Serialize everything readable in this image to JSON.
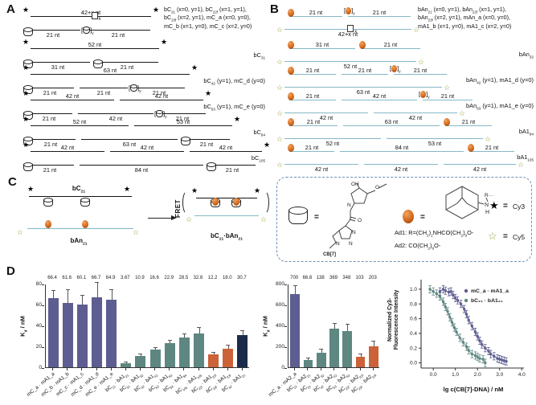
{
  "colors": {
    "purple": "#5d5d91",
    "teal": "#5e8781",
    "orange": "#cc6237",
    "navy": "#1c2b4a",
    "strand_black": "#1a1a1a",
    "strand_blue": "#85b8c6",
    "ball_orange": "#d2691e",
    "cy5_olive": "#9aa23c",
    "legend_border": "#7191b5",
    "axis": "#333333",
    "error": "#555555"
  },
  "icons": {
    "cy3_star": "★",
    "cy5_star": "☆"
  },
  "misc": {
    "sub_x": "x",
    "sub_y": "y",
    "lbracket": "[",
    "rbracket": "]"
  },
  "panel_a": {
    "letter": "A",
    "rows": [
      {
        "h": 42,
        "top": {
          "x": 12,
          "y": 14,
          "segs": [
            {
              "t": "42+x nt",
              "w": 150
            }
          ],
          "ls": 1,
          "rs": 1,
          "box": {
            "frac": 0.53,
            "sub": "x"
          }
        },
        "bot": {
          "x": 6,
          "y": 31,
          "segs": [
            {
              "t": "21 nt",
              "w": 68,
              "icon": "cb7"
            },
            {
              "t": "21 nt",
              "w": 80,
              "icon": "cb7y"
            }
          ]
        },
        "label_lines": [
          "bC_{21} (x=0, y=1), bC_{22f} (x=1, y=1),",
          "bC_{23f} (x=2, y=1), mC_a (x=0, y=0),",
          "mC_b (x=1, y=0), mC_c (x=2, y=0)"
        ],
        "label_left": 178
      },
      {
        "h": 32,
        "top": {
          "x": 12,
          "y": 12,
          "segs": [
            {
              "t": "52 nt",
              "w": 160
            }
          ],
          "ls": 1,
          "rs": 1
        },
        "bot": {
          "x": 6,
          "y": 29,
          "segs": [
            {
              "t": "31 nt",
              "w": 80,
              "icon": "cb7"
            },
            {
              "t": "21 nt",
              "w": 78,
              "icon": "cb7"
            }
          ]
        },
        "label": "bC_{31}"
      },
      {
        "h": 32,
        "top": {
          "x": 12,
          "y": 12,
          "segs": [
            {
              "t": "63 nt",
              "w": 198
            }
          ],
          "ls": 1,
          "rs": 1
        },
        "bot": {
          "x": 6,
          "y": 29,
          "segs": [
            {
              "t": "21 nt",
              "w": 60,
              "icon": "cb7"
            },
            {
              "t": "21 nt",
              "w": 60
            },
            {
              "t": "21 nt",
              "w": 64,
              "icon": "cb7y"
            }
          ]
        },
        "label": "bC_{42} (y=1), mC_d (y=0)"
      },
      {
        "h": 32,
        "top": {
          "x": 12,
          "y": 12,
          "segs": [
            {
              "t": "42 nt",
              "w": 104
            },
            {
              "t": "42 nt",
              "w": 104
            }
          ],
          "ls": 1,
          "rs": 1
        },
        "bot": {
          "x": 6,
          "y": 29,
          "segs": [
            {
              "t": "21 nt",
              "w": 58,
              "icon": "cb7"
            },
            {
              "t": "42 nt",
              "w": 94
            },
            {
              "t": "21 nt",
              "w": 58,
              "icon": "cb7y"
            }
          ]
        },
        "label": "bC_{63} (y=1), mC_e (y=0)"
      },
      {
        "h": 32,
        "top": {
          "x": 12,
          "y": 12,
          "segs": [
            {
              "t": "52 nt",
              "w": 122
            },
            {
              "t": "53 nt",
              "w": 122
            }
          ],
          "ls": 1,
          "rs": 1
        },
        "bot": {
          "x": 6,
          "y": 29,
          "segs": [
            {
              "t": "21 nt",
              "w": 62,
              "icon": "cb7"
            },
            {
              "t": "63 nt",
              "w": 120
            },
            {
              "t": "21 nt",
              "w": 58,
              "icon": "cb7"
            }
          ]
        },
        "label": "bC_{84}"
      },
      {
        "h": 32,
        "top": {
          "x": 12,
          "y": 12,
          "segs": [
            {
              "t": "42 nt",
              "w": 92
            },
            {
              "t": "42 nt",
              "w": 92
            },
            {
              "t": "42 nt",
              "w": 90
            }
          ],
          "ls": 1,
          "rs": 1
        },
        "bot": {
          "x": 6,
          "y": 29,
          "segs": [
            {
              "t": "21 nt",
              "w": 60,
              "icon": "cb7"
            },
            {
              "t": "84 nt",
              "w": 154
            },
            {
              "t": "21 nt",
              "w": 58,
              "icon": "cb7"
            }
          ]
        },
        "label": "bC_{105}"
      }
    ]
  },
  "panel_b": {
    "letter": "B",
    "rows": [
      {
        "h": 42,
        "top": {
          "x": 10,
          "y": 14,
          "segs": [
            {
              "t": "21 nt",
              "w": 66,
              "icon": "ball"
            },
            {
              "t": "21 nt",
              "w": 78,
              "icon": "bally"
            }
          ]
        },
        "bot": {
          "x": 4,
          "y": 30,
          "segs": [
            {
              "t": "42+x nt",
              "w": 158
            }
          ],
          "ls": 1,
          "rs": 1,
          "box": {
            "frac": 0.52,
            "sub": "x"
          }
        },
        "label_lines": [
          "bAn_{21} (x=0, y=1), bAn_{22f} (x=1, y=1),",
          "bAn_{23f} (x=2, y=1), mAn_a (x=0, y=0),",
          "mA1_b (x=1, y=0), mA1_c (x=2, y=0)"
        ],
        "label_left": 170
      },
      {
        "h": 32,
        "top": {
          "x": 10,
          "y": 12,
          "segs": [
            {
              "t": "31 nt",
              "w": 82,
              "icon": "ball"
            },
            {
              "t": "21 nt",
              "w": 74,
              "icon": "ball"
            }
          ]
        },
        "bot": {
          "x": 4,
          "y": 28,
          "segs": [
            {
              "t": "52 nt",
              "w": 164
            }
          ],
          "ls": 1,
          "rs": 1
        },
        "label": "bAn_{32}"
      },
      {
        "h": 32,
        "top": {
          "x": 10,
          "y": 12,
          "segs": [
            {
              "t": "21 nt",
              "w": 58,
              "icon": "ball"
            },
            {
              "t": "21 nt",
              "w": 58
            },
            {
              "t": "21 nt",
              "w": 66,
              "icon": "bally"
            }
          ]
        },
        "bot": {
          "x": 4,
          "y": 28,
          "segs": [
            {
              "t": "63 nt",
              "w": 196
            }
          ],
          "ls": 1,
          "rs": 1
        },
        "label": "bAn_{42} (y=1), mA1_d (y=0)"
      },
      {
        "h": 32,
        "top": {
          "x": 10,
          "y": 12,
          "segs": [
            {
              "t": "21 nt",
              "w": 58,
              "icon": "ball"
            },
            {
              "t": "42 nt",
              "w": 94
            },
            {
              "t": "21 nt",
              "w": 62,
              "icon": "bally"
            }
          ]
        },
        "bot": {
          "x": 4,
          "y": 28,
          "segs": [
            {
              "t": "42 nt",
              "w": 104
            },
            {
              "t": "42 nt",
              "w": 104
            }
          ],
          "ls": 1,
          "rs": 1
        },
        "label": "bAn_{63} (y=1), mA1_e (y=0)"
      },
      {
        "h": 32,
        "top": {
          "x": 10,
          "y": 12,
          "segs": [
            {
              "t": "21 nt",
              "w": 60,
              "icon": "ball"
            },
            {
              "t": "63 nt",
              "w": 120
            },
            {
              "t": "21 nt",
              "w": 58,
              "icon": "ball"
            }
          ]
        },
        "bot": {
          "x": 4,
          "y": 28,
          "segs": [
            {
              "t": "52 nt",
              "w": 120
            },
            {
              "t": "53 nt",
              "w": 120
            }
          ],
          "ls": 1,
          "rs": 1
        },
        "label": "bA1_{84}"
      },
      {
        "h": 32,
        "top": {
          "x": 10,
          "y": 12,
          "segs": [
            {
              "t": "21 nt",
              "w": 56,
              "icon": "ball"
            },
            {
              "t": "84 nt",
              "w": 154
            },
            {
              "t": "21 nt",
              "w": 56,
              "icon": "ball"
            }
          ]
        },
        "bot": {
          "x": 4,
          "y": 28,
          "segs": [
            {
              "t": "42 nt",
              "w": 92
            },
            {
              "t": "42 nt",
              "w": 92
            },
            {
              "t": "42 nt",
              "w": 90
            }
          ],
          "ls": 1,
          "rs": 1
        },
        "label": "bA1_{105}"
      }
    ]
  },
  "panel_c": {
    "letter": "C",
    "duplex_top": "bC_{21}",
    "duplex_bottom": "bAn_{21}",
    "fret": "FRET",
    "product": "bC_{21}·bAn_{21}"
  },
  "legend": {
    "eq": "=",
    "cy3": "Cy3",
    "cy5": "Cy5",
    "cb7": "CB[7]",
    "ad1": "Ad1: R=(CH_{2})_{2}NHCO(CH_{2})_{9}O-",
    "ad2": "Ad2: CO(CH_{2})_{9}O-",
    "struct": {
      "oh": "OH",
      "o_methoxy": "O",
      "n_ring": "N",
      "o_carbonyl": "O",
      "n1": "N",
      "n2": "N",
      "n3": "N"
    },
    "adam": {
      "n": "N",
      "h": "H",
      "r": "R···"
    }
  },
  "panel_d_letter": "D",
  "chart_data": [
    {
      "type": "bar",
      "title": "",
      "xlabel": "",
      "ylabel": "K_{d} / nM",
      "ylim": [
        0,
        80
      ],
      "yticks": [
        0,
        20,
        40,
        60,
        80
      ],
      "categories": [
        "mC_a · mA1_a",
        "mC_b · mA1_b",
        "mC_c · mA1_c",
        "mC_d · mA1_d",
        "mC_e · mA1_e",
        "bC_{21} · bA1_{21}",
        "bC_{31} · bA1_{32}",
        "bC_{42} · bA1_{42}",
        "bC_{63} · bA1_{63}",
        "bC_{84} · bA1_{84}",
        "bC_{105} · bA1_{105}",
        "bC_{22f} · bA1_{22f}",
        "bC_{23f} · bA1_{23f}",
        "bC_{42} · bA1_{21}"
      ],
      "values": [
        66.4,
        61.6,
        60.1,
        66.7,
        64.9,
        3.67,
        10.9,
        16.6,
        22.9,
        28.5,
        32.6,
        12.2,
        18.0,
        30.7
      ],
      "value_labels": [
        "66.4",
        "61.6",
        "60.1",
        "66.7",
        "64.9",
        "3.67",
        "10.9",
        "16.6",
        "22.9",
        "28.5",
        "32.6",
        "12.2",
        "18.0",
        "30.7"
      ],
      "errors": [
        7,
        12,
        8,
        14,
        9,
        1,
        1.5,
        2,
        2.5,
        3,
        5,
        2,
        3,
        4
      ],
      "bar_colors": [
        "purple",
        "purple",
        "purple",
        "purple",
        "purple",
        "teal",
        "teal",
        "teal",
        "teal",
        "teal",
        "teal",
        "orange",
        "orange",
        "navy"
      ]
    },
    {
      "type": "bar",
      "title": "",
      "xlabel": "",
      "ylabel": "K_{d} / nM",
      "ylim": [
        0,
        800
      ],
      "yticks": [
        0,
        200,
        400,
        600,
        800
      ],
      "categories": [
        "mC_a · mA2_a",
        "bC_{21} · bA2_{21}",
        "bC_{31} · bA2_{32}",
        "bC_{42} · bA2_{42}",
        "bC_{63} · bA2_{63}",
        "bC_{22f} · bA2_{22f}",
        "bC_{23f} · bA2_{23f}"
      ],
      "values": [
        700,
        66.8,
        138,
        369,
        348,
        103,
        203
      ],
      "value_labels": [
        "700",
        "66.8",
        "138",
        "369",
        "348",
        "103",
        "203"
      ],
      "errors": [
        78,
        18,
        30,
        45,
        58,
        22,
        42
      ],
      "bar_colors": [
        "purple",
        "teal",
        "teal",
        "teal",
        "teal",
        "orange",
        "orange"
      ]
    },
    {
      "type": "scatter",
      "xlabel": "lg c(CB[7]-DNA) / nM",
      "ylabel_lines": [
        "Normalized Cy3-",
        "Fluorescence Intensity"
      ],
      "xlim": [
        -0.55,
        4.1
      ],
      "ylim": [
        -0.07,
        1.13
      ],
      "xticks": [
        0.0,
        1.0,
        2.0,
        3.0,
        4.0
      ],
      "yticks": [
        0.0,
        0.2,
        0.4,
        0.6,
        0.8,
        1.0
      ],
      "legend_position": "top-right",
      "series": [
        {
          "name": "bC_{21} · bA1_{21}",
          "color": "teal",
          "err": 0.05,
          "x": [
            -0.15,
            0.0,
            0.15,
            0.3,
            0.45,
            0.55,
            0.65,
            0.75,
            0.85,
            0.95,
            1.05,
            1.2,
            1.35,
            1.5,
            1.6,
            1.75,
            1.9,
            2.0,
            2.1,
            2.25,
            2.35
          ],
          "y": [
            1.0,
            0.97,
            0.94,
            0.9,
            0.83,
            0.76,
            0.7,
            0.62,
            0.55,
            0.48,
            0.42,
            0.34,
            0.28,
            0.22,
            0.17,
            0.12,
            0.1,
            0.08,
            0.06,
            0.05,
            0.0
          ]
        },
        {
          "name": "mC_a · mA1_a",
          "color": "purple",
          "err": 0.05,
          "x": [
            0.3,
            0.45,
            0.55,
            0.7,
            0.8,
            0.9,
            1.0,
            1.1,
            1.25,
            1.4,
            1.5,
            1.6,
            1.75,
            1.9,
            2.0,
            2.1,
            2.2,
            2.35,
            2.5,
            2.6,
            2.75,
            2.9,
            3.0,
            3.1,
            3.2,
            3.3
          ],
          "y": [
            0.97,
            1.0,
            0.98,
            0.96,
            0.97,
            0.92,
            0.88,
            0.85,
            0.8,
            0.73,
            0.66,
            0.58,
            0.5,
            0.42,
            0.36,
            0.3,
            0.25,
            0.2,
            0.16,
            0.12,
            0.09,
            0.06,
            0.05,
            0.04,
            0.03,
            0.02
          ]
        }
      ]
    }
  ]
}
